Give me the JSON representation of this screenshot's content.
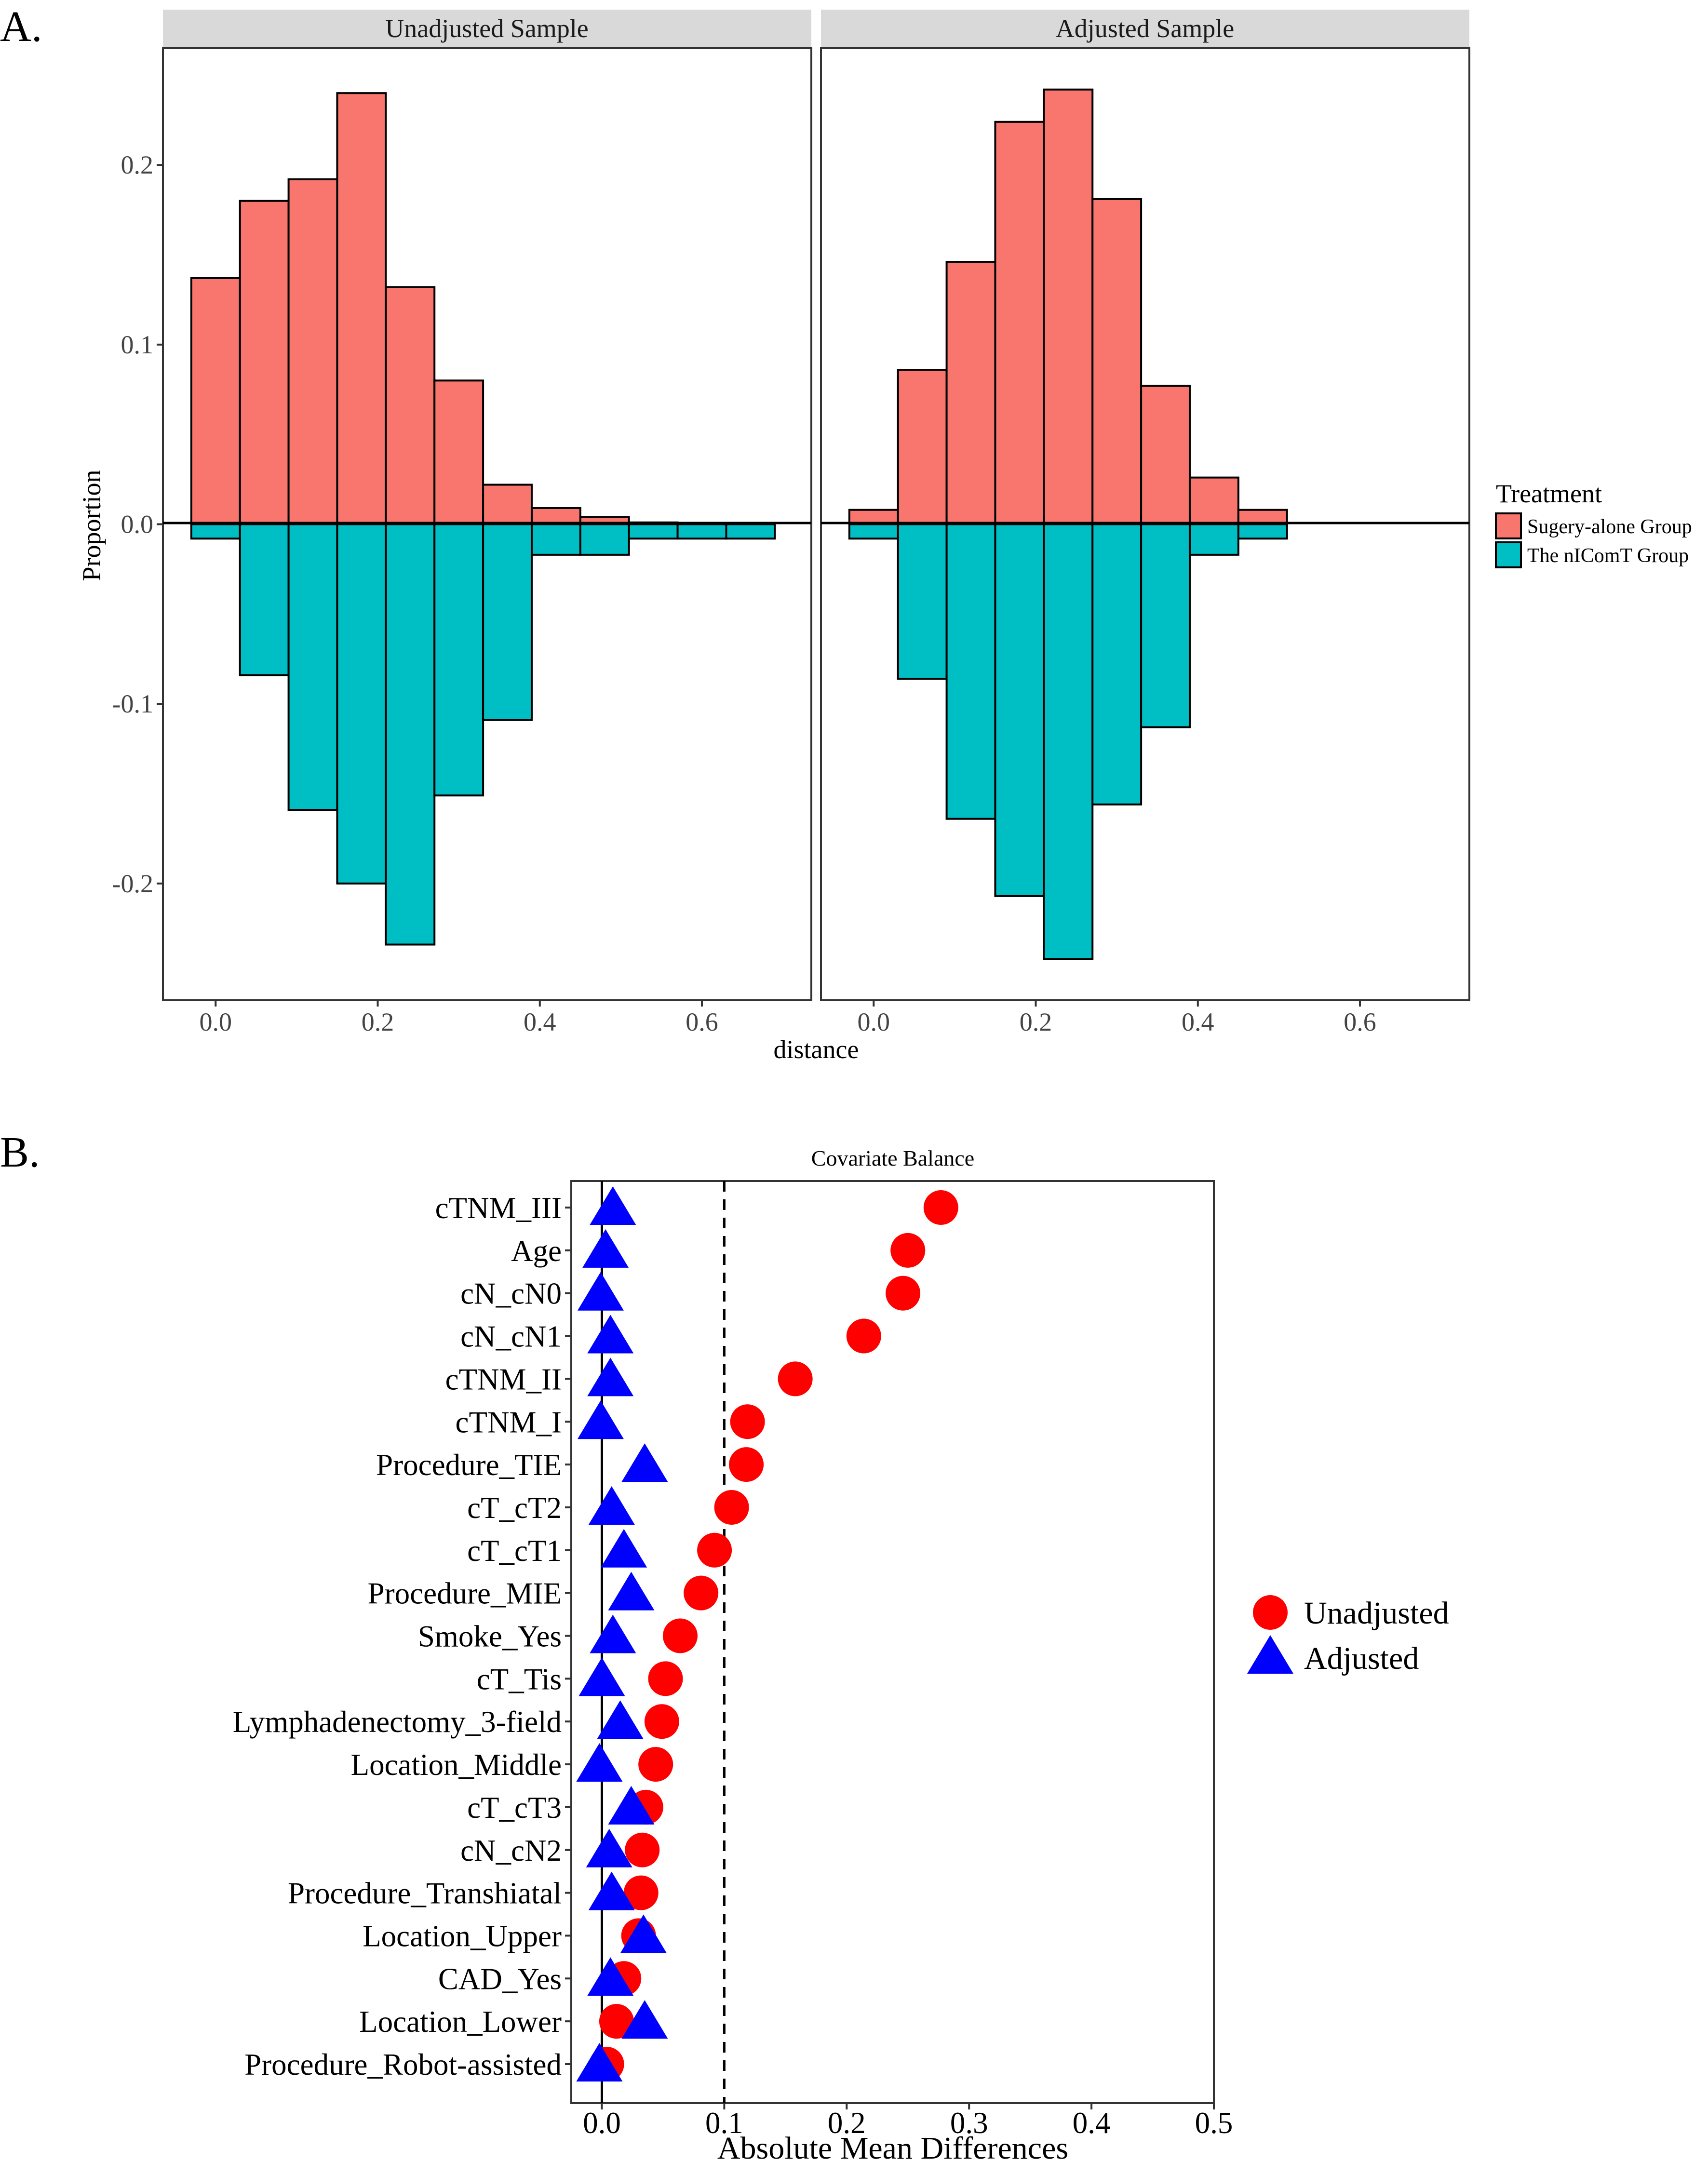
{
  "panel_labels": {
    "a": "A.",
    "b": "B."
  },
  "colors": {
    "treated": "#F8766D",
    "control": "#00BFC4",
    "unadjusted": "#FF0000",
    "adjusted": "#0000FF",
    "strip": "#D9D9D9"
  },
  "chart_data": [
    {
      "type": "bar",
      "subtype": "mirrored-histogram",
      "xlabel": "distance",
      "ylabel": "Proportion",
      "xlim": [
        -0.065,
        0.735
      ],
      "ylim": [
        -0.265,
        0.265
      ],
      "xticks": [
        0.0,
        0.2,
        0.4,
        0.6
      ],
      "xtick_labels": [
        "0.0",
        "0.2",
        "0.4",
        "0.6"
      ],
      "yticks": [
        -0.2,
        -0.1,
        0.0,
        0.1,
        0.2
      ],
      "ytick_labels": [
        "-0.2",
        "-0.1",
        "0.0",
        "0.1",
        "0.2"
      ],
      "bin_edges": [
        -0.03,
        0.03,
        0.09,
        0.15,
        0.21,
        0.27,
        0.33,
        0.39,
        0.45,
        0.51,
        0.57,
        0.63,
        0.69
      ],
      "legend": {
        "title": "Treatment",
        "position": "right",
        "entries": [
          "Sugery-alone Group",
          "The nIComT Group"
        ]
      },
      "panels": [
        {
          "title": "Unadjusted Sample",
          "series": [
            {
              "name": "Sugery-alone Group",
              "values": [
                0.137,
                0.18,
                0.192,
                0.24,
                0.132,
                0.08,
                0.022,
                0.009,
                0.004,
                0.001,
                0,
                0
              ]
            },
            {
              "name": "The nIComT Group",
              "values": [
                -0.008,
                -0.084,
                -0.159,
                -0.2,
                -0.234,
                -0.151,
                -0.109,
                -0.017,
                -0.017,
                -0.008,
                -0.008,
                -0.008
              ]
            }
          ]
        },
        {
          "title": "Adjusted Sample",
          "series": [
            {
              "name": "Sugery-alone Group",
              "values": [
                0.008,
                0.086,
                0.146,
                0.224,
                0.242,
                0.181,
                0.077,
                0.026,
                0.008,
                0,
                0,
                0
              ]
            },
            {
              "name": "The nIComT Group",
              "values": [
                -0.008,
                -0.086,
                -0.164,
                -0.207,
                -0.242,
                -0.156,
                -0.113,
                -0.017,
                -0.008,
                0,
                0,
                0
              ]
            }
          ]
        }
      ]
    },
    {
      "type": "scatter",
      "subtype": "love-plot",
      "title": "Covariate Balance",
      "xlabel": "Absolute Mean Differences",
      "xlim": [
        -0.025,
        0.5
      ],
      "xticks": [
        0.0,
        0.1,
        0.2,
        0.3,
        0.4,
        0.5
      ],
      "xtick_labels": [
        "0.0",
        "0.1",
        "0.2",
        "0.3",
        "0.4",
        "0.5"
      ],
      "reference_line": 0.1,
      "legend": {
        "position": "right",
        "entries": [
          "Unadjusted",
          "Adjusted"
        ]
      },
      "variables": [
        "cTNM_III",
        "Age",
        "cN_cN0",
        "cN_cN1",
        "cTNM_II",
        "cTNM_I",
        "Procedure_TIE",
        "cT_cT2",
        "cT_cT1",
        "Procedure_MIE",
        "Smoke_Yes",
        "cT_Tis",
        "Lymphadenectomy_3-field",
        "Location_Middle",
        "cT_cT3",
        "cN_cN2",
        "Procedure_Transhiatal",
        "Location_Upper",
        "CAD_Yes",
        "Location_Lower",
        "Procedure_Robot-assisted"
      ],
      "series": [
        {
          "name": "Unadjusted",
          "values": [
            0.277,
            0.25,
            0.246,
            0.214,
            0.158,
            0.119,
            0.118,
            0.106,
            0.092,
            0.081,
            0.064,
            0.052,
            0.049,
            0.044,
            0.036,
            0.033,
            0.032,
            0.03,
            0.018,
            0.012,
            0.004
          ]
        },
        {
          "name": "Adjusted",
          "values": [
            0.009,
            0.003,
            -0.001,
            0.007,
            0.007,
            -0.001,
            0.035,
            0.008,
            0.018,
            0.024,
            0.009,
            0.0,
            0.015,
            -0.002,
            0.024,
            0.006,
            0.008,
            0.034,
            0.007,
            0.035,
            -0.002
          ]
        }
      ]
    }
  ]
}
